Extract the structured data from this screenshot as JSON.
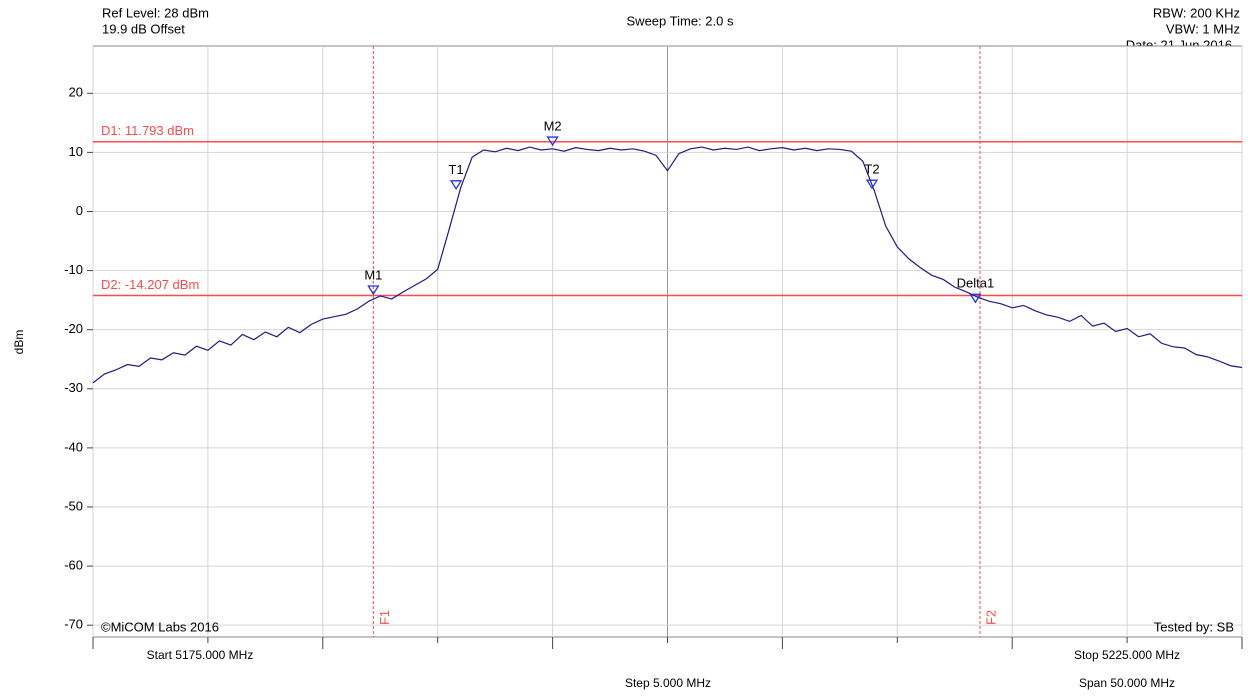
{
  "chart_data": {
    "type": "line",
    "header": {
      "ref_level": "Ref Level: 28 dBm",
      "offset": "19.9 dB Offset",
      "sweep_time": "Sweep Time: 2.0 s",
      "rbw": "RBW: 200 KHz",
      "vbw": "VBW: 1 MHz",
      "date": "Date: 21 Jun 2016 -"
    },
    "footer": {
      "start": "Start 5175.000 MHz",
      "stop": "Stop 5225.000 MHz",
      "step": "Step 5.000 MHz",
      "span": "Span 50.000 MHz",
      "copyright": "©MiCOM Labs 2016",
      "tested_by": "Tested by: SB"
    },
    "y_label": "dBm",
    "xlim": [
      5175,
      5225
    ],
    "xticks": [
      5175,
      5180,
      5185,
      5190,
      5195,
      5200,
      5205,
      5210,
      5215,
      5220,
      5225
    ],
    "ylim": [
      -72,
      28
    ],
    "yticks": [
      20,
      10,
      0,
      -10,
      -20,
      -30,
      -40,
      -50,
      -60,
      -70
    ],
    "grid": true,
    "series": [
      {
        "color": "#1c1c84",
        "x": [
          5175,
          5175.5,
          5176,
          5176.5,
          5177,
          5177.5,
          5178,
          5178.5,
          5179,
          5179.5,
          5180,
          5180.5,
          5181,
          5181.5,
          5182,
          5182.5,
          5183,
          5183.5,
          5184,
          5184.5,
          5185,
          5185.5,
          5186,
          5186.5,
          5187,
          5187.5,
          5188,
          5188.5,
          5189,
          5189.5,
          5190,
          5190.5,
          5191,
          5191.5,
          5192,
          5192.5,
          5193,
          5193.5,
          5194,
          5194.5,
          5195,
          5195.5,
          5196,
          5196.5,
          5197,
          5197.5,
          5198,
          5198.5,
          5199,
          5199.5,
          5200,
          5200.5,
          5201,
          5201.5,
          5202,
          5202.5,
          5203,
          5203.5,
          5204,
          5204.5,
          5205,
          5205.5,
          5206,
          5206.5,
          5207,
          5207.5,
          5208,
          5208.5,
          5209,
          5209.5,
          5210,
          5210.5,
          5211,
          5211.5,
          5212,
          5212.5,
          5213,
          5213.5,
          5214,
          5214.5,
          5215,
          5215.5,
          5216,
          5216.5,
          5217,
          5217.5,
          5218,
          5218.5,
          5219,
          5219.5,
          5220,
          5220.5,
          5221,
          5221.5,
          5222,
          5222.5,
          5223,
          5223.5,
          5224,
          5224.5,
          5225
        ],
        "values": [
          -29,
          -27.5,
          -26.8,
          -25.9,
          -26.2,
          -24.8,
          -25.1,
          -23.9,
          -24.3,
          -22.8,
          -23.5,
          -21.9,
          -22.6,
          -20.8,
          -21.7,
          -20.4,
          -21.2,
          -19.6,
          -20.5,
          -19.1,
          -18.2,
          -17.8,
          -17.4,
          -16.5,
          -15.2,
          -14.3,
          -14.8,
          -13.6,
          -12.5,
          -11.4,
          -9.8,
          -3,
          4,
          9.2,
          10.4,
          10.1,
          10.7,
          10.3,
          10.9,
          10.4,
          10.6,
          10.2,
          10.8,
          10.5,
          10.3,
          10.7,
          10.4,
          10.6,
          10.2,
          9.5,
          6.9,
          9.8,
          10.6,
          10.9,
          10.4,
          10.7,
          10.5,
          10.9,
          10.3,
          10.6,
          10.8,
          10.4,
          10.7,
          10.3,
          10.6,
          10.5,
          10.2,
          8.5,
          3.5,
          -2.5,
          -6,
          -8,
          -9.5,
          -10.8,
          -11.5,
          -12.8,
          -13.6,
          -14.5,
          -15.2,
          -15.6,
          -16.3,
          -15.9,
          -16.8,
          -17.5,
          -17.9,
          -18.6,
          -17.6,
          -19.4,
          -18.9,
          -20.3,
          -19.8,
          -21.2,
          -20.7,
          -22.3,
          -22.9,
          -23.1,
          -24.2,
          -24.6,
          -25.3,
          -26.1,
          -26.4
        ]
      }
    ],
    "display_lines": [
      {
        "label": "D1: 11.793 dBm",
        "value": 11.793
      },
      {
        "label": "D2: -14.207 dBm",
        "value": -14.207
      }
    ],
    "freq_lines": [
      {
        "label": "F1",
        "value": 5187.2
      },
      {
        "label": "F2",
        "value": 5213.6
      }
    ],
    "markers": [
      {
        "label": "M1",
        "x": 5187.2,
        "y": -14.3
      },
      {
        "label": "M2",
        "x": 5195,
        "y": 10.9
      },
      {
        "label": "T1",
        "x": 5190.8,
        "y": 3.5
      },
      {
        "label": "T2",
        "x": 5208.9,
        "y": 3.6
      },
      {
        "label": "Delta1",
        "x": 5213.4,
        "y": -15.7
      }
    ],
    "line_color": "#ff4a4a"
  }
}
